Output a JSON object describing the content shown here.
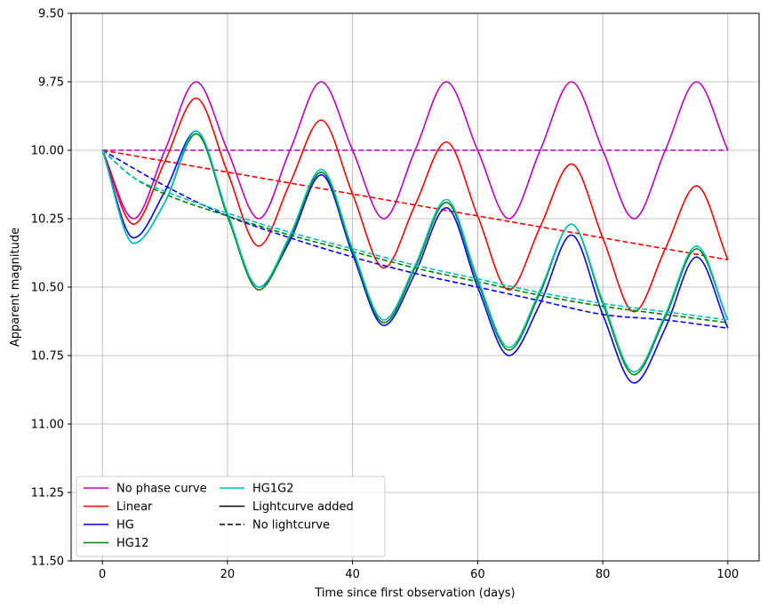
{
  "chart_data": {
    "type": "line",
    "title": "",
    "xlabel": "Time since first observation (days)",
    "ylabel": "Apparent magnitude",
    "xlim": [
      -5,
      105
    ],
    "ylim": [
      9.5,
      11.5
    ],
    "y_inverted": true,
    "grid": true,
    "legend_placement": "lower-left",
    "legend_columns": 2,
    "xticks": [
      0,
      20,
      40,
      60,
      80,
      100
    ],
    "xtick_labels": [
      "0",
      "20",
      "40",
      "60",
      "80",
      "100"
    ],
    "yticks": [
      9.5,
      9.75,
      10.0,
      10.25,
      10.5,
      10.75,
      11.0,
      11.25,
      11.5
    ],
    "ytick_labels": [
      "9.50",
      "9.75",
      "10.00",
      "10.25",
      "10.50",
      "10.75",
      "11.00",
      "11.25",
      "11.50"
    ],
    "legend": [
      {
        "label": "No phase curve",
        "color": "#bf00bf",
        "dash": "solid"
      },
      {
        "label": "Linear",
        "color": "#ff0000",
        "dash": "solid"
      },
      {
        "label": "HG",
        "color": "#0000ff",
        "dash": "solid"
      },
      {
        "label": "HG12",
        "color": "#008000",
        "dash": "solid"
      },
      {
        "label": "HG1G2",
        "color": "#00bfbf",
        "dash": "solid"
      },
      {
        "label": "Lightcurve added",
        "color": "#000000",
        "dash": "solid"
      },
      {
        "label": "No lightcurve",
        "color": "#000000",
        "dash": "dashed"
      }
    ],
    "series": [
      {
        "color": "#bf00bf",
        "style": "solid",
        "x": [
          0,
          5,
          10,
          15,
          20,
          25,
          30,
          35,
          40,
          45,
          50,
          55,
          60,
          65,
          70,
          75,
          80,
          85,
          90,
          95,
          100
        ],
        "y": [
          10.0,
          10.25,
          10.0,
          9.75,
          10.0,
          10.25,
          10.0,
          9.75,
          10.0,
          10.25,
          10.0,
          9.75,
          10.0,
          10.25,
          10.0,
          9.75,
          10.0,
          10.25,
          10.0,
          9.75,
          10.0
        ]
      },
      {
        "color": "#bf00bf",
        "style": "dashed",
        "x": [
          0,
          100
        ],
        "y": [
          10.0,
          10.0
        ]
      },
      {
        "color": "#ff0000",
        "style": "solid",
        "x": [
          0,
          5,
          10,
          15,
          20,
          25,
          30,
          35,
          40,
          45,
          50,
          55,
          60,
          65,
          70,
          75,
          80,
          85,
          90,
          95,
          100
        ],
        "y": [
          10.0,
          10.27,
          10.04,
          9.81,
          10.08,
          10.35,
          10.12,
          9.89,
          10.16,
          10.43,
          10.2,
          9.97,
          10.24,
          10.51,
          10.28,
          10.05,
          10.32,
          10.59,
          10.36,
          10.13,
          10.4
        ]
      },
      {
        "color": "#ff0000",
        "style": "dashed",
        "x": [
          0,
          100
        ],
        "y": [
          10.0,
          10.4
        ]
      },
      {
        "color": "#0000ff",
        "style": "solid",
        "x": [
          0,
          5,
          10,
          15,
          20,
          25,
          30,
          35,
          40,
          45,
          50,
          55,
          60,
          65,
          70,
          75,
          80,
          85,
          90,
          95,
          100
        ],
        "y": [
          10.0,
          10.32,
          10.15,
          9.93,
          10.24,
          10.5,
          10.33,
          10.09,
          10.38,
          10.64,
          10.45,
          10.21,
          10.5,
          10.75,
          10.56,
          10.31,
          10.6,
          10.85,
          10.65,
          10.39,
          10.65
        ]
      },
      {
        "color": "#0000ff",
        "style": "dashed",
        "x": [
          0,
          10,
          20,
          30,
          40,
          50,
          60,
          70,
          80,
          90,
          100
        ],
        "y": [
          10.0,
          10.13,
          10.24,
          10.32,
          10.39,
          10.45,
          10.5,
          10.55,
          10.6,
          10.62,
          10.65
        ]
      },
      {
        "color": "#008000",
        "style": "solid",
        "x": [
          0,
          5,
          10,
          15,
          20,
          25,
          30,
          35,
          40,
          45,
          50,
          55,
          60,
          65,
          70,
          75,
          80,
          85,
          90,
          95,
          100
        ],
        "y": [
          10.0,
          10.34,
          10.19,
          9.94,
          10.24,
          10.51,
          10.32,
          10.08,
          10.37,
          10.63,
          10.43,
          10.19,
          10.48,
          10.73,
          10.52,
          10.27,
          10.56,
          10.82,
          10.61,
          10.36,
          10.62
        ]
      },
      {
        "color": "#008000",
        "style": "dashed",
        "x": [
          0,
          5,
          10,
          20,
          30,
          40,
          50,
          60,
          70,
          80,
          90,
          100
        ],
        "y": [
          10.0,
          10.1,
          10.16,
          10.24,
          10.31,
          10.37,
          10.43,
          10.48,
          10.53,
          10.57,
          10.6,
          10.63
        ]
      },
      {
        "color": "#00bfbf",
        "style": "solid",
        "x": [
          0,
          5,
          10,
          15,
          20,
          25,
          30,
          35,
          40,
          45,
          50,
          55,
          60,
          65,
          70,
          75,
          80,
          85,
          90,
          95,
          100
        ],
        "y": [
          10.0,
          10.34,
          10.19,
          9.93,
          10.23,
          10.5,
          10.31,
          10.07,
          10.36,
          10.62,
          10.42,
          10.18,
          10.47,
          10.72,
          10.51,
          10.27,
          10.55,
          10.81,
          10.6,
          10.35,
          10.62
        ]
      },
      {
        "color": "#00bfbf",
        "style": "dashed",
        "x": [
          0,
          5,
          10,
          20,
          30,
          40,
          50,
          60,
          70,
          80,
          90,
          100
        ],
        "y": [
          10.0,
          10.1,
          10.15,
          10.23,
          10.3,
          10.36,
          10.42,
          10.47,
          10.52,
          10.56,
          10.59,
          10.62
        ]
      }
    ]
  }
}
